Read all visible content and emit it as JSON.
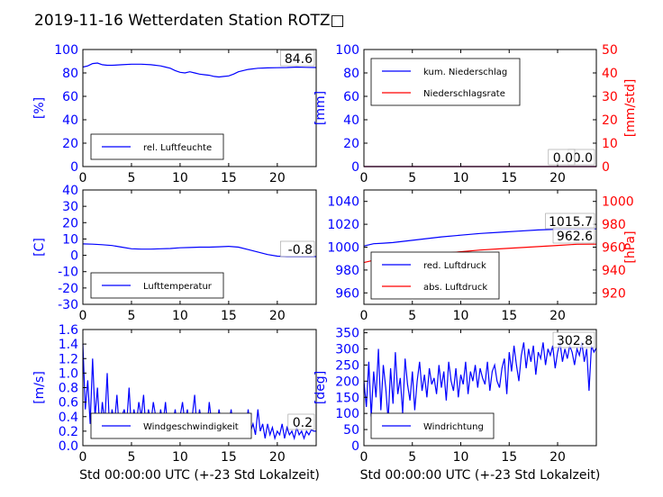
{
  "figure": {
    "title": "2019-11-16 Wetterdaten Station ROTZ□"
  },
  "chart_data": [
    {
      "type": "line",
      "panel": "humidity",
      "x_ticks": [
        0,
        5,
        10,
        15,
        20
      ],
      "xlim": [
        0,
        24
      ],
      "ylim": [
        0,
        100
      ],
      "y_ticks": [
        0,
        20,
        40,
        60,
        80,
        100
      ],
      "ylabel": "[%]",
      "series": [
        {
          "name": "rel. Luftfeuchte",
          "color": "#0000ff",
          "x": [
            0,
            0.5,
            1,
            1.5,
            2,
            2.5,
            3,
            4,
            5,
            6,
            7,
            8,
            8.5,
            9,
            9.5,
            10,
            10.5,
            11,
            11.5,
            12,
            12.5,
            13,
            13.5,
            14,
            14.5,
            15,
            15.5,
            16,
            17,
            18,
            19,
            20,
            21,
            22,
            23,
            24
          ],
          "y": [
            85,
            86,
            88,
            88.5,
            87,
            86.5,
            86.5,
            87,
            87.5,
            87.5,
            87,
            86,
            85,
            84,
            82,
            80.5,
            80,
            81,
            80,
            79,
            78.5,
            78,
            77,
            76.5,
            77,
            77.5,
            79,
            81,
            83,
            84,
            84.3,
            84.5,
            84.6,
            85,
            84.8,
            84.6
          ]
        }
      ],
      "annotation": "84.6"
    },
    {
      "type": "line",
      "panel": "precipitation",
      "x_ticks": [
        0,
        5,
        10,
        15,
        20
      ],
      "xlim": [
        0,
        24
      ],
      "ylim": [
        0,
        100
      ],
      "y_ticks": [
        0,
        20,
        40,
        60,
        80,
        100
      ],
      "ylabel": "[mm]",
      "ylim2": [
        0,
        50
      ],
      "y2_ticks": [
        0,
        10,
        20,
        30,
        40,
        50
      ],
      "y2label": "[mm/std]",
      "series": [
        {
          "name": "kum. Niederschlag",
          "color": "#0000ff",
          "x": [
            0,
            24
          ],
          "y": [
            0,
            0
          ]
        },
        {
          "name": "Niederschlagsrate",
          "color": "#ff0000",
          "axis": "right",
          "x": [
            0,
            24
          ],
          "y": [
            0,
            0
          ]
        }
      ],
      "annotations": [
        "0.0",
        "0.0"
      ]
    },
    {
      "type": "line",
      "panel": "temperature",
      "x_ticks": [
        0,
        5,
        10,
        15,
        20
      ],
      "xlim": [
        0,
        24
      ],
      "ylim": [
        -30,
        40
      ],
      "y_ticks": [
        -30,
        -20,
        -10,
        0,
        10,
        20,
        30,
        40
      ],
      "ylabel": "[C]",
      "series": [
        {
          "name": "Lufttemperatur",
          "color": "#0000ff",
          "x": [
            0,
            1,
            2,
            3,
            4,
            5,
            6,
            7,
            8,
            9,
            10,
            11,
            12,
            13,
            14,
            15,
            16,
            17,
            18,
            19,
            20,
            21,
            22,
            23,
            24
          ],
          "y": [
            7,
            6.8,
            6.5,
            6,
            5,
            4,
            3.8,
            3.8,
            4,
            4.2,
            4.6,
            4.8,
            5,
            5,
            5.2,
            5.5,
            5,
            3.5,
            2,
            0.5,
            -0.5,
            -0.8,
            -0.8,
            -0.8,
            -0.8
          ]
        }
      ],
      "annotation": "-0.8"
    },
    {
      "type": "line",
      "panel": "pressure",
      "x_ticks": [
        0,
        5,
        10,
        15,
        20
      ],
      "xlim": [
        0,
        24
      ],
      "ylim": [
        950,
        1050
      ],
      "y_ticks": [
        960,
        980,
        1000,
        1020,
        1040
      ],
      "ylabel": "",
      "ylim2": [
        910,
        1010
      ],
      "y2_ticks": [
        920,
        940,
        960,
        980,
        1000
      ],
      "y2label": "[hPa]",
      "series": [
        {
          "name": "red. Luftdruck",
          "color": "#0000ff",
          "x": [
            0,
            1,
            2,
            3,
            4,
            5,
            6,
            8,
            10,
            12,
            14,
            16,
            18,
            20,
            22,
            24
          ],
          "y": [
            1001,
            1003,
            1003.5,
            1004,
            1005,
            1006,
            1007,
            1009,
            1010.5,
            1012,
            1013,
            1014,
            1015,
            1015.7,
            1015.7,
            1016
          ]
        },
        {
          "name": "abs. Luftdruck",
          "color": "#ff0000",
          "axis": "right",
          "x": [
            0,
            1,
            2,
            3,
            4,
            5,
            6,
            8,
            10,
            12,
            14,
            16,
            18,
            20,
            22,
            24
          ],
          "y": [
            946.5,
            948.5,
            949,
            949.5,
            950.5,
            951.5,
            952.5,
            954.5,
            956,
            957.5,
            958.5,
            959.5,
            960.5,
            961.5,
            962.5,
            962.6
          ]
        }
      ],
      "annotations": [
        "1015.7",
        "962.6"
      ]
    },
    {
      "type": "line",
      "panel": "wind_speed",
      "x_ticks": [
        0,
        5,
        10,
        15,
        20
      ],
      "xlim": [
        0,
        24
      ],
      "ylim": [
        0,
        1.6
      ],
      "y_ticks": [
        0.0,
        0.2,
        0.4,
        0.6,
        0.8,
        1.0,
        1.2,
        1.4,
        1.6
      ],
      "ylabel": "[m/s]",
      "xlabel": "Std 00:00:00 UTC (+-23 Std Lokalzeit)",
      "series": [
        {
          "name": "Windgeschwindigkeit",
          "color": "#0000ff",
          "x": [
            0,
            0.25,
            0.5,
            0.75,
            1,
            1.25,
            1.5,
            1.75,
            2,
            2.25,
            2.5,
            2.75,
            3,
            3.25,
            3.5,
            3.75,
            4,
            4.25,
            4.5,
            4.75,
            5,
            5.25,
            5.5,
            5.75,
            6,
            6.25,
            6.5,
            6.75,
            7,
            7.25,
            7.5,
            7.75,
            8,
            8.25,
            8.5,
            8.75,
            9,
            9.25,
            9.5,
            9.75,
            10,
            10.25,
            10.5,
            10.75,
            11,
            11.25,
            11.5,
            11.75,
            12,
            12.25,
            12.5,
            12.75,
            13,
            13.25,
            13.5,
            13.75,
            14,
            14.25,
            14.5,
            14.75,
            15,
            15.25,
            15.5,
            15.75,
            16,
            16.25,
            16.5,
            16.75,
            17,
            17.25,
            17.5,
            17.75,
            18,
            18.25,
            18.5,
            18.75,
            19,
            19.25,
            19.5,
            19.75,
            20,
            20.25,
            20.5,
            20.75,
            21,
            21.25,
            21.5,
            21.75,
            22,
            22.25,
            22.5,
            22.75,
            23,
            23.25,
            23.5,
            23.75,
            24
          ],
          "y": [
            1.4,
            0.5,
            0.9,
            0.3,
            1.2,
            0.4,
            0.8,
            0.2,
            0.6,
            0.3,
            1.0,
            0.2,
            0.5,
            0.3,
            0.7,
            0.2,
            0.4,
            0.5,
            0.3,
            0.8,
            0.2,
            0.5,
            0.3,
            0.6,
            0.4,
            0.7,
            0.2,
            0.5,
            0.3,
            0.6,
            0.4,
            0.2,
            0.5,
            0.3,
            0.6,
            0.2,
            0.4,
            0.3,
            0.5,
            0.2,
            0.4,
            0.6,
            0.3,
            0.5,
            0.2,
            0.4,
            0.7,
            0.2,
            0.5,
            0.3,
            0.4,
            0.2,
            0.6,
            0.3,
            0.4,
            0.2,
            0.5,
            0.3,
            0.4,
            0.2,
            0.3,
            0.5,
            0.2,
            0.4,
            0.3,
            0.2,
            0.4,
            0.2,
            0.5,
            0.2,
            0.3,
            0.15,
            0.5,
            0.2,
            0.3,
            0.1,
            0.3,
            0.15,
            0.25,
            0.1,
            0.2,
            0.15,
            0.3,
            0.1,
            0.25,
            0.15,
            0.2,
            0.1,
            0.25,
            0.15,
            0.2,
            0.1,
            0.2,
            0.15,
            0.22,
            0.2,
            0.2
          ]
        }
      ],
      "annotation": "0.2"
    },
    {
      "type": "line",
      "panel": "wind_direction",
      "x_ticks": [
        0,
        5,
        10,
        15,
        20
      ],
      "xlim": [
        0,
        24
      ],
      "ylim": [
        0,
        360
      ],
      "y_ticks": [
        0,
        50,
        100,
        150,
        200,
        250,
        300,
        350
      ],
      "ylabel": "[deg]",
      "xlabel": "Std 00:00:00 UTC (+-23 Std Lokalzeit)",
      "series": [
        {
          "name": "Windrichtung",
          "color": "#0000ff",
          "x": [
            0,
            0.25,
            0.5,
            0.75,
            1,
            1.25,
            1.5,
            1.75,
            2,
            2.25,
            2.5,
            2.75,
            3,
            3.25,
            3.5,
            3.75,
            4,
            4.25,
            4.5,
            4.75,
            5,
            5.25,
            5.5,
            5.75,
            6,
            6.25,
            6.5,
            6.75,
            7,
            7.25,
            7.5,
            7.75,
            8,
            8.25,
            8.5,
            8.75,
            9,
            9.25,
            9.5,
            9.75,
            10,
            10.25,
            10.5,
            10.75,
            11,
            11.25,
            11.5,
            11.75,
            12,
            12.25,
            12.5,
            12.75,
            13,
            13.25,
            13.5,
            13.75,
            14,
            14.25,
            14.5,
            14.75,
            15,
            15.25,
            15.5,
            15.75,
            16,
            16.25,
            16.5,
            16.75,
            17,
            17.25,
            17.5,
            17.75,
            18,
            18.25,
            18.5,
            18.75,
            19,
            19.25,
            19.5,
            19.75,
            20,
            20.25,
            20.5,
            20.75,
            21,
            21.25,
            21.5,
            21.75,
            22,
            22.25,
            22.5,
            22.75,
            23,
            23.25,
            23.5,
            23.75,
            24
          ],
          "y": [
            200,
            120,
            260,
            90,
            230,
            150,
            300,
            110,
            250,
            180,
            80,
            240,
            130,
            290,
            160,
            210,
            100,
            270,
            190,
            140,
            230,
            110,
            200,
            260,
            170,
            220,
            150,
            240,
            190,
            210,
            160,
            250,
            180,
            230,
            140,
            260,
            200,
            170,
            240,
            150,
            220,
            190,
            260,
            160,
            230,
            200,
            250,
            180,
            240,
            210,
            190,
            260,
            170,
            230,
            250,
            200,
            180,
            240,
            270,
            160,
            290,
            230,
            310,
            250,
            200,
            280,
            320,
            240,
            300,
            260,
            310,
            220,
            290,
            270,
            320,
            250,
            300,
            280,
            310,
            240,
            290,
            320,
            260,
            300,
            270,
            310,
            290,
            250,
            300,
            280,
            320,
            260,
            300,
            170,
            310,
            290,
            303
          ]
        }
      ],
      "annotation": "302.8"
    }
  ]
}
